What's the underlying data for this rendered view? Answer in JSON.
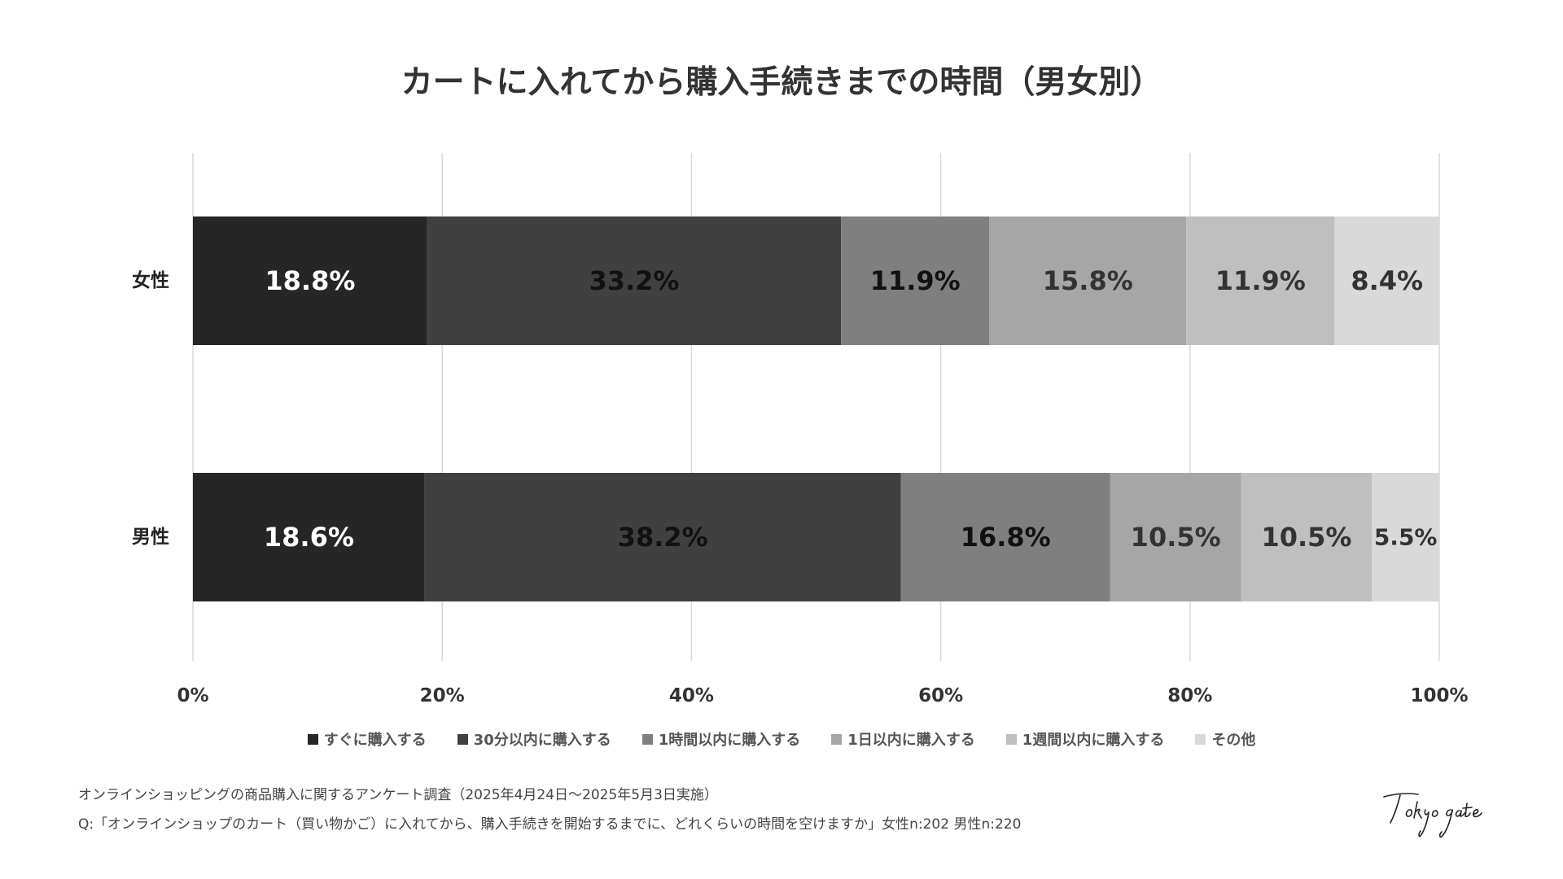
{
  "chart_data": {
    "type": "bar",
    "orientation": "horizontal",
    "stacked": true,
    "title": "カートに入れてから購入手続きまでの時間（男女別）",
    "categories": [
      "女性",
      "男性"
    ],
    "series": [
      {
        "name": "すぐに購入する",
        "values": [
          18.8,
          18.6
        ],
        "labels": [
          "18.8%",
          "18.6%"
        ],
        "color": "#262626",
        "label_color": "#ffffff"
      },
      {
        "name": "30分以内に購入する",
        "values": [
          33.2,
          38.2
        ],
        "labels": [
          "33.2%",
          "38.2%"
        ],
        "color": "#404040",
        "label_color": "#111111"
      },
      {
        "name": "1時間以内に購入する",
        "values": [
          11.9,
          16.8
        ],
        "labels": [
          "11.9%",
          "16.8%"
        ],
        "color": "#7f7f7f",
        "label_color": "#111111"
      },
      {
        "name": "1日以内に購入する",
        "values": [
          15.8,
          10.5
        ],
        "labels": [
          "15.8%",
          "10.5%"
        ],
        "color": "#a6a6a6",
        "label_color": "#333333"
      },
      {
        "name": "1週間以内に購入する",
        "values": [
          11.9,
          10.5
        ],
        "labels": [
          "11.9%",
          "10.5%"
        ],
        "color": "#bfbfbf",
        "label_color": "#333333"
      },
      {
        "name": "その他",
        "values": [
          8.4,
          5.5
        ],
        "labels": [
          "8.4%",
          "5.5%"
        ],
        "color": "#d9d9d9",
        "label_color": "#333333"
      }
    ],
    "xlim": [
      0,
      100
    ],
    "x_ticks": [
      "0%",
      "20%",
      "40%",
      "60%",
      "80%",
      "100%"
    ],
    "grid": true,
    "legend_position": "bottom"
  },
  "footnotes": {
    "source": "オンラインショッピングの商品購入に関するアンケート調査（2025年4月24日〜2025年5月3日実施）",
    "question": "Q:「オンラインショップのカート（買い物かご）に入れてから、購入手続きを開始するまでに、どれくらいの時間を空けますか」女性n:202 男性n:220"
  },
  "brand": {
    "logo_text": "Tokyo gate"
  }
}
